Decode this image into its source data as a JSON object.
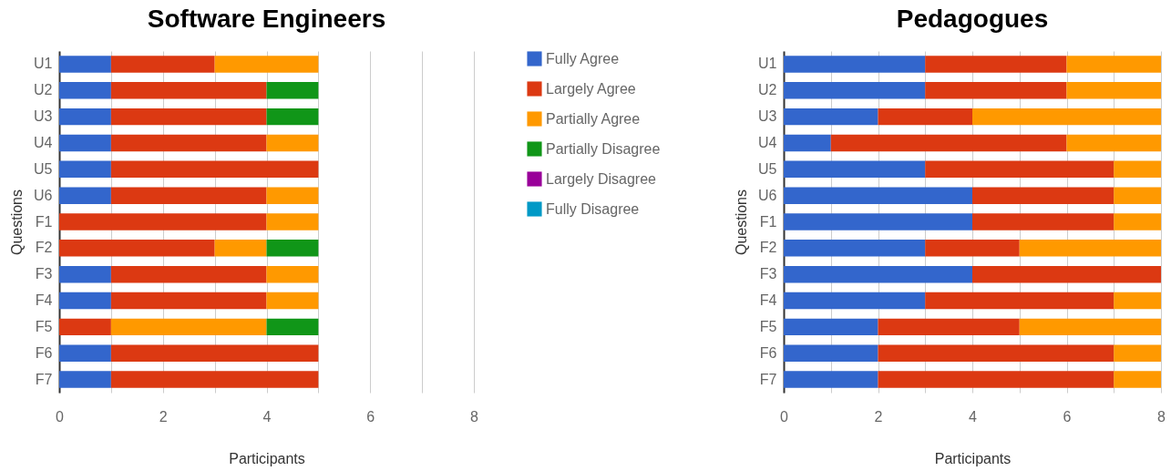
{
  "chart_data": [
    {
      "type": "bar",
      "orientation": "horizontal",
      "stacked": true,
      "title": "Software Engineers",
      "xlabel": "Participants",
      "ylabel": "Questions",
      "categories": [
        "U1",
        "U2",
        "U3",
        "U4",
        "U5",
        "U6",
        "F1",
        "F2",
        "F3",
        "F4",
        "F5",
        "F6",
        "F7"
      ],
      "series": [
        {
          "name": "Fully Agree",
          "color": "#3366cc",
          "values": [
            1,
            1,
            1,
            1,
            1,
            1,
            0,
            0,
            1,
            1,
            0,
            1,
            1
          ]
        },
        {
          "name": "Largely Agree",
          "color": "#dc3912",
          "values": [
            2,
            3,
            3,
            3,
            4,
            3,
            4,
            3,
            3,
            3,
            1,
            4,
            4
          ]
        },
        {
          "name": "Partially Agree",
          "color": "#ff9900",
          "values": [
            2,
            0,
            0,
            1,
            0,
            1,
            1,
            1,
            1,
            1,
            3,
            0,
            0
          ]
        },
        {
          "name": "Partially Disagree",
          "color": "#109618",
          "values": [
            0,
            1,
            1,
            0,
            0,
            0,
            0,
            1,
            0,
            0,
            1,
            0,
            0
          ]
        },
        {
          "name": "Largely Disagree",
          "color": "#990099",
          "values": [
            0,
            0,
            0,
            0,
            0,
            0,
            0,
            0,
            0,
            0,
            0,
            0,
            0
          ]
        },
        {
          "name": "Fully Disagree",
          "color": "#0099c6",
          "values": [
            0,
            0,
            0,
            0,
            0,
            0,
            0,
            0,
            0,
            0,
            0,
            0,
            0
          ]
        }
      ],
      "xlim": [
        0,
        8
      ],
      "xticks": [
        0,
        {
          "value": 1,
          "label": null
        },
        2,
        {
          "value": 3,
          "label": null
        },
        4,
        {
          "value": 5,
          "label": null
        },
        6,
        {
          "value": 7,
          "label": null
        },
        8
      ],
      "grid": true,
      "legend": "right"
    },
    {
      "type": "bar",
      "orientation": "horizontal",
      "stacked": true,
      "title": "Pedagogues",
      "xlabel": "Participants",
      "ylabel": "Questions",
      "categories": [
        "U1",
        "U2",
        "U3",
        "U4",
        "U5",
        "U6",
        "F1",
        "F2",
        "F3",
        "F4",
        "F5",
        "F6",
        "F7"
      ],
      "series": [
        {
          "color": "#3366cc",
          "values": [
            3,
            3,
            2,
            1,
            3,
            4,
            4,
            3,
            4,
            3,
            2,
            2,
            2
          ]
        },
        {
          "color": "#dc3912",
          "values": [
            3,
            3,
            2,
            5,
            4,
            3,
            3,
            2,
            4,
            4,
            3,
            5,
            5
          ]
        },
        {
          "color": "#ff9900",
          "values": [
            2,
            2,
            4,
            2,
            1,
            1,
            1,
            3,
            0,
            1,
            3,
            1,
            1
          ]
        }
      ],
      "xlim": [
        0,
        8
      ],
      "xticks": [
        0,
        {
          "value": 1,
          "label": null
        },
        2,
        {
          "value": 3,
          "label": null
        },
        4,
        {
          "value": 5,
          "label": null
        },
        6,
        {
          "value": 7,
          "label": null
        },
        8
      ],
      "grid": true,
      "legend": false
    }
  ]
}
